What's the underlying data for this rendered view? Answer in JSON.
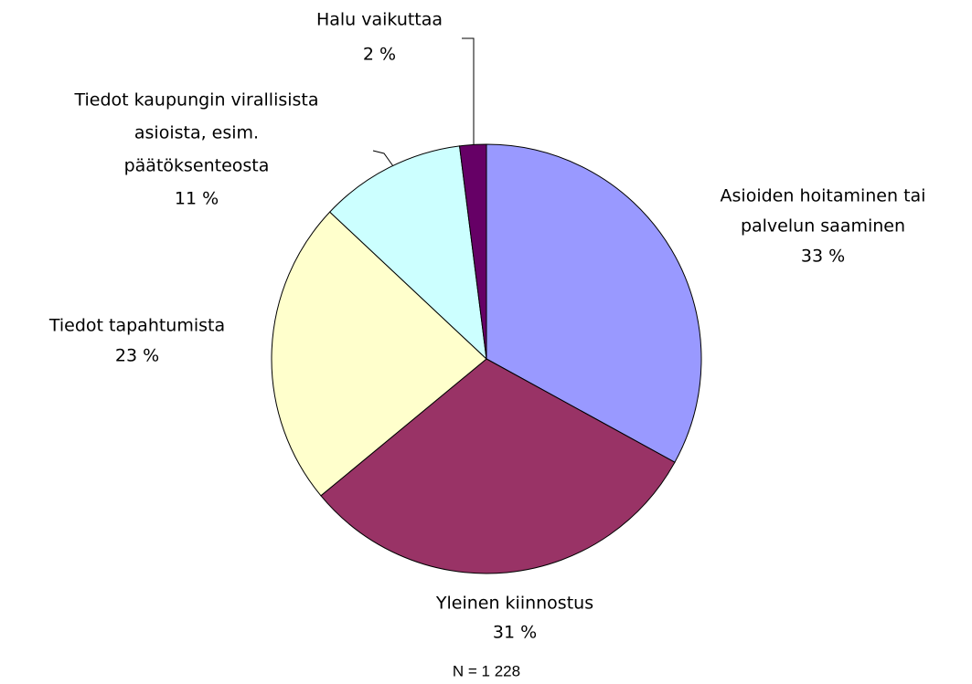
{
  "chart_data": {
    "type": "pie",
    "categories": [
      [
        "Asioiden hoitaminen tai",
        "palvelun saaminen"
      ],
      [
        "Yleinen kiinnostus"
      ],
      [
        "Tiedot tapahtumista"
      ],
      [
        "Tiedot kaupungin virallisista",
        "asioista, esim.",
        "päätöksenteosta"
      ],
      [
        "Halu vaikuttaa"
      ]
    ],
    "values": [
      33,
      31,
      23,
      11,
      2
    ],
    "value_labels": [
      "33 %",
      "31 %",
      "23 %",
      "11 %",
      "2 %"
    ],
    "colors": [
      "#9999ff",
      "#993366",
      "#ffffcc",
      "#ccffff",
      "#660066"
    ],
    "note": "N = 1 228"
  }
}
